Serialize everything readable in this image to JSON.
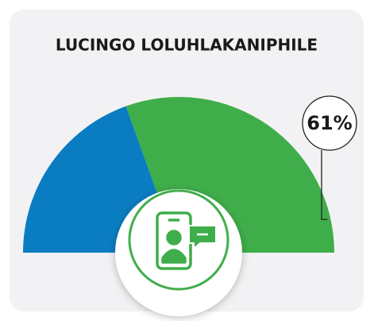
{
  "chart_data": {
    "type": "pie",
    "half": true,
    "title": "LUCINGO LOLUHLAKANIPHILE",
    "values": [
      39,
      61
    ],
    "value_labels": [
      null,
      "61%"
    ],
    "colors": [
      "#0a7dc2",
      "#3fae4a"
    ]
  }
}
